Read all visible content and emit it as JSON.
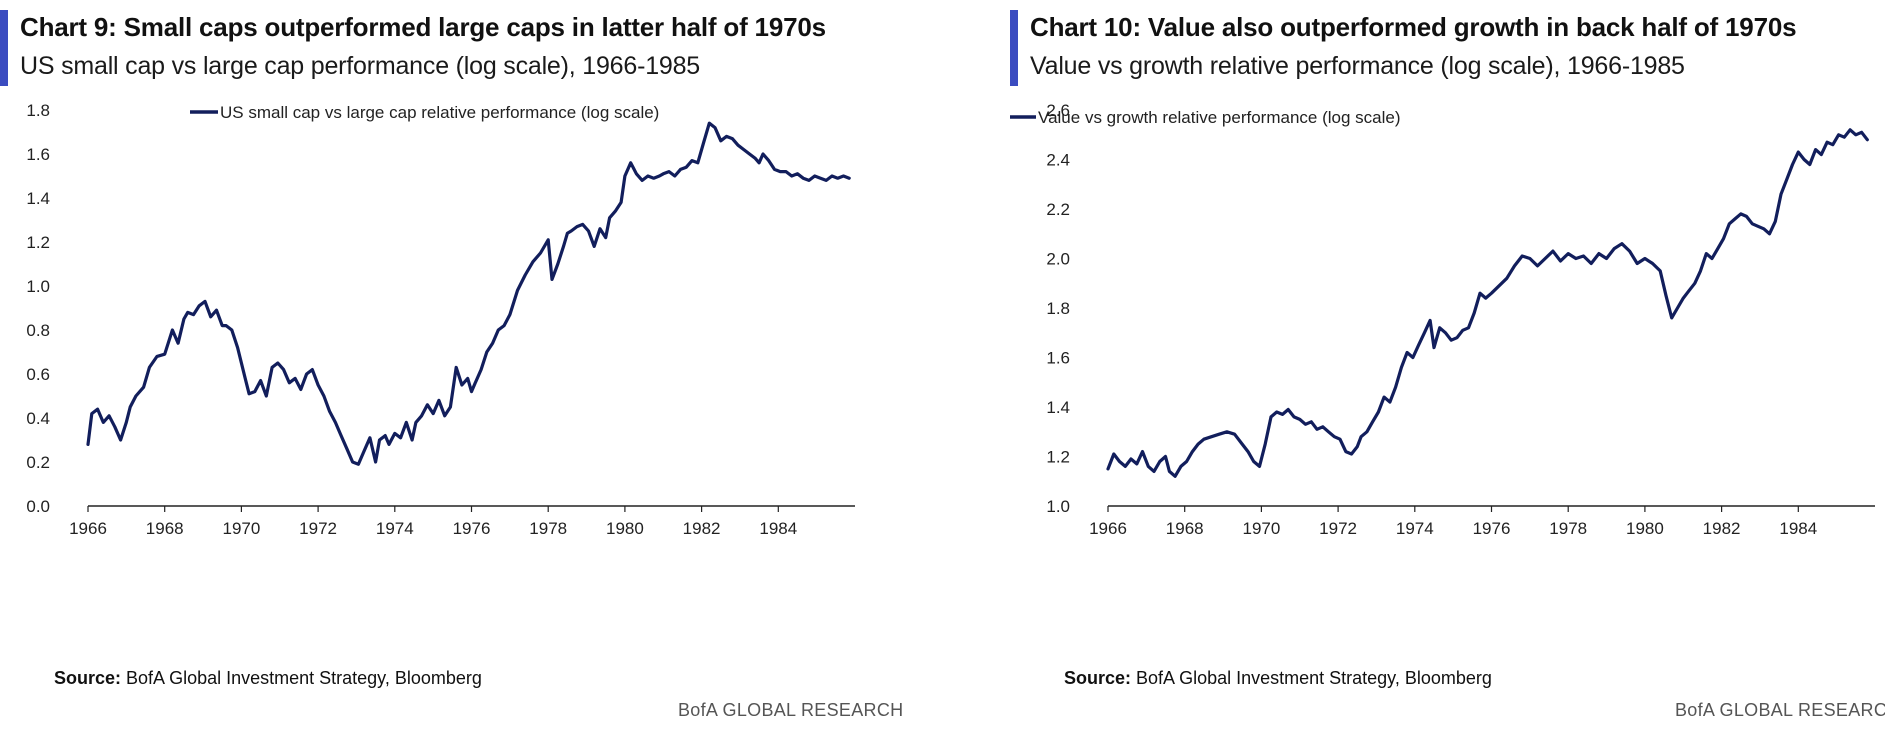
{
  "colors": {
    "accent": "#3b4cc0",
    "line": "#121e5c",
    "axis": "#222222"
  },
  "charts": [
    {
      "title": "Chart 9: Small caps outperformed large caps in latter half of 1970s",
      "subtitle": "US small cap vs large cap performance (log scale), 1966-1985",
      "source_label": "Source:",
      "source_text": " BofA Global Investment Strategy, Bloomberg",
      "brand": "BofA GLOBAL RESEARCH"
    },
    {
      "title": "Chart 10: Value also outperformed growth in back half of 1970s",
      "subtitle": "Value vs growth relative performance (log scale), 1966-1985",
      "source_label": "Source:",
      "source_text": " BofA Global Investment Strategy, Bloomberg",
      "brand": "BofA GLOBAL RESEARCH"
    }
  ],
  "chart_data": [
    {
      "type": "line",
      "title": "Chart 9: Small caps outperformed large caps in latter half of 1970s",
      "subtitle": "US small cap vs large cap performance (log scale), 1966-1985",
      "xlabel": "",
      "ylabel": "",
      "xlim": [
        1966,
        1986
      ],
      "ylim": [
        0.0,
        1.8
      ],
      "x_ticks": [
        1966,
        1968,
        1970,
        1972,
        1974,
        1976,
        1978,
        1980,
        1982,
        1984
      ],
      "y_ticks": [
        0.0,
        0.2,
        0.4,
        0.6,
        0.8,
        1.0,
        1.2,
        1.4,
        1.6,
        1.8
      ],
      "y_tick_labels": [
        "0.0",
        "0.2",
        "0.4",
        "0.6",
        "0.8",
        "1.0",
        "1.2",
        "1.4",
        "1.6",
        "1.8"
      ],
      "grid": false,
      "legend_position": "top-center",
      "series": [
        {
          "name": "US small cap vs large cap relative performance (log scale)",
          "x": [
            1966.0,
            1966.1,
            1966.25,
            1966.4,
            1966.55,
            1966.7,
            1966.85,
            1967.0,
            1967.1,
            1967.25,
            1967.45,
            1967.6,
            1967.8,
            1968.0,
            1968.2,
            1968.35,
            1968.5,
            1968.6,
            1968.75,
            1968.9,
            1969.05,
            1969.2,
            1969.35,
            1969.5,
            1969.6,
            1969.75,
            1969.9,
            1970.0,
            1970.1,
            1970.2,
            1970.35,
            1970.5,
            1970.65,
            1970.8,
            1970.95,
            1971.1,
            1971.25,
            1971.4,
            1971.55,
            1971.7,
            1971.85,
            1972.0,
            1972.15,
            1972.3,
            1972.45,
            1972.6,
            1972.75,
            1972.9,
            1973.05,
            1973.2,
            1973.35,
            1973.5,
            1973.6,
            1973.75,
            1973.85,
            1974.0,
            1974.15,
            1974.3,
            1974.45,
            1974.55,
            1974.7,
            1974.85,
            1975.0,
            1975.15,
            1975.3,
            1975.45,
            1975.6,
            1975.75,
            1975.9,
            1976.0,
            1976.1,
            1976.25,
            1976.4,
            1976.55,
            1976.7,
            1976.85,
            1977.0,
            1977.2,
            1977.4,
            1977.6,
            1977.8,
            1978.0,
            1978.1,
            1978.25,
            1978.4,
            1978.5,
            1978.6,
            1978.75,
            1978.9,
            1979.05,
            1979.2,
            1979.35,
            1979.5,
            1979.6,
            1979.75,
            1979.9,
            1980.0,
            1980.15,
            1980.3,
            1980.45,
            1980.6,
            1980.75,
            1980.9,
            1981.0,
            1981.15,
            1981.3,
            1981.45,
            1981.6,
            1981.75,
            1981.9,
            1982.05,
            1982.2,
            1982.35,
            1982.5,
            1982.65,
            1982.8,
            1982.95,
            1983.1,
            1983.25,
            1983.4,
            1983.5,
            1983.6,
            1983.75,
            1983.9,
            1984.05,
            1984.2,
            1984.35,
            1984.5,
            1984.65,
            1984.8,
            1984.95,
            1985.1,
            1985.25,
            1985.4,
            1985.55,
            1985.7,
            1985.85
          ],
          "y": [
            0.28,
            0.42,
            0.44,
            0.38,
            0.41,
            0.36,
            0.3,
            0.38,
            0.45,
            0.5,
            0.54,
            0.63,
            0.68,
            0.69,
            0.8,
            0.74,
            0.85,
            0.88,
            0.87,
            0.91,
            0.93,
            0.86,
            0.89,
            0.82,
            0.82,
            0.8,
            0.72,
            0.65,
            0.58,
            0.51,
            0.52,
            0.57,
            0.5,
            0.63,
            0.65,
            0.62,
            0.56,
            0.58,
            0.53,
            0.6,
            0.62,
            0.55,
            0.5,
            0.43,
            0.38,
            0.32,
            0.26,
            0.2,
            0.19,
            0.25,
            0.31,
            0.2,
            0.3,
            0.32,
            0.28,
            0.33,
            0.31,
            0.38,
            0.3,
            0.38,
            0.41,
            0.46,
            0.42,
            0.48,
            0.41,
            0.45,
            0.63,
            0.55,
            0.58,
            0.52,
            0.56,
            0.62,
            0.7,
            0.74,
            0.8,
            0.82,
            0.87,
            0.98,
            1.05,
            1.11,
            1.15,
            1.21,
            1.03,
            1.1,
            1.18,
            1.24,
            1.25,
            1.27,
            1.28,
            1.25,
            1.18,
            1.26,
            1.22,
            1.31,
            1.34,
            1.38,
            1.5,
            1.56,
            1.51,
            1.48,
            1.5,
            1.49,
            1.5,
            1.51,
            1.52,
            1.5,
            1.53,
            1.54,
            1.57,
            1.56,
            1.65,
            1.74,
            1.72,
            1.66,
            1.68,
            1.67,
            1.64,
            1.62,
            1.6,
            1.58,
            1.56,
            1.6,
            1.57,
            1.53,
            1.52,
            1.52,
            1.5,
            1.51,
            1.49,
            1.48,
            1.5,
            1.49,
            1.48,
            1.5,
            1.49,
            1.5,
            1.49
          ]
        }
      ]
    },
    {
      "type": "line",
      "title": "Chart 10: Value also outperformed growth in back half of 1970s",
      "subtitle": "Value vs growth relative performance (log scale), 1966-1985",
      "xlabel": "",
      "ylabel": "",
      "xlim": [
        1966,
        1986
      ],
      "ylim": [
        1.0,
        2.6
      ],
      "x_ticks": [
        1966,
        1968,
        1970,
        1972,
        1974,
        1976,
        1978,
        1980,
        1982,
        1984
      ],
      "y_ticks": [
        1.0,
        1.2,
        1.4,
        1.6,
        1.8,
        2.0,
        2.2,
        2.4,
        2.6
      ],
      "y_tick_labels": [
        "1.0",
        "1.2",
        "1.4",
        "1.6",
        "1.8",
        "2.0",
        "2.2",
        "2.4",
        "2.6"
      ],
      "grid": false,
      "legend_position": "top-center",
      "series": [
        {
          "name": "Value vs growth relative performance (log scale)",
          "x": [
            1966.0,
            1966.15,
            1966.3,
            1966.45,
            1966.6,
            1966.75,
            1966.9,
            1967.05,
            1967.2,
            1967.35,
            1967.5,
            1967.6,
            1967.75,
            1967.9,
            1968.05,
            1968.2,
            1968.35,
            1968.5,
            1968.7,
            1968.9,
            1969.1,
            1969.3,
            1969.5,
            1969.65,
            1969.8,
            1969.95,
            1970.1,
            1970.25,
            1970.4,
            1970.55,
            1970.7,
            1970.85,
            1971.0,
            1971.15,
            1971.3,
            1971.45,
            1971.6,
            1971.75,
            1971.9,
            1972.05,
            1972.2,
            1972.35,
            1972.5,
            1972.6,
            1972.75,
            1972.9,
            1973.05,
            1973.2,
            1973.35,
            1973.5,
            1973.65,
            1973.8,
            1973.95,
            1974.1,
            1974.25,
            1974.4,
            1974.5,
            1974.65,
            1974.8,
            1974.95,
            1975.1,
            1975.25,
            1975.4,
            1975.55,
            1975.7,
            1975.85,
            1976.0,
            1976.2,
            1976.4,
            1976.6,
            1976.8,
            1977.0,
            1977.2,
            1977.4,
            1977.6,
            1977.8,
            1978.0,
            1978.2,
            1978.4,
            1978.6,
            1978.8,
            1979.0,
            1979.2,
            1979.4,
            1979.6,
            1979.8,
            1980.0,
            1980.2,
            1980.4,
            1980.55,
            1980.7,
            1980.85,
            1981.0,
            1981.15,
            1981.3,
            1981.45,
            1981.6,
            1981.75,
            1981.9,
            1982.05,
            1982.2,
            1982.35,
            1982.5,
            1982.65,
            1982.8,
            1982.95,
            1983.1,
            1983.25,
            1983.4,
            1983.55,
            1983.7,
            1983.85,
            1984.0,
            1984.15,
            1984.3,
            1984.45,
            1984.6,
            1984.75,
            1984.9,
            1985.05,
            1985.2,
            1985.35,
            1985.5,
            1985.65,
            1985.8
          ],
          "y": [
            1.15,
            1.21,
            1.18,
            1.16,
            1.19,
            1.17,
            1.22,
            1.16,
            1.14,
            1.18,
            1.2,
            1.14,
            1.12,
            1.16,
            1.18,
            1.22,
            1.25,
            1.27,
            1.28,
            1.29,
            1.3,
            1.29,
            1.25,
            1.22,
            1.18,
            1.16,
            1.25,
            1.36,
            1.38,
            1.37,
            1.39,
            1.36,
            1.35,
            1.33,
            1.34,
            1.31,
            1.32,
            1.3,
            1.28,
            1.27,
            1.22,
            1.21,
            1.24,
            1.28,
            1.3,
            1.34,
            1.38,
            1.44,
            1.42,
            1.48,
            1.56,
            1.62,
            1.6,
            1.65,
            1.7,
            1.75,
            1.64,
            1.72,
            1.7,
            1.67,
            1.68,
            1.71,
            1.72,
            1.78,
            1.86,
            1.84,
            1.86,
            1.89,
            1.92,
            1.97,
            2.01,
            2.0,
            1.97,
            2.0,
            2.03,
            1.99,
            2.02,
            2.0,
            2.01,
            1.98,
            2.02,
            2.0,
            2.04,
            2.06,
            2.03,
            1.98,
            2.0,
            1.98,
            1.95,
            1.85,
            1.76,
            1.8,
            1.84,
            1.87,
            1.9,
            1.95,
            2.02,
            2.0,
            2.04,
            2.08,
            2.14,
            2.16,
            2.18,
            2.17,
            2.14,
            2.13,
            2.12,
            2.1,
            2.15,
            2.26,
            2.32,
            2.38,
            2.43,
            2.4,
            2.38,
            2.44,
            2.42,
            2.47,
            2.46,
            2.5,
            2.49,
            2.52,
            2.5,
            2.51,
            2.48
          ]
        }
      ]
    }
  ]
}
